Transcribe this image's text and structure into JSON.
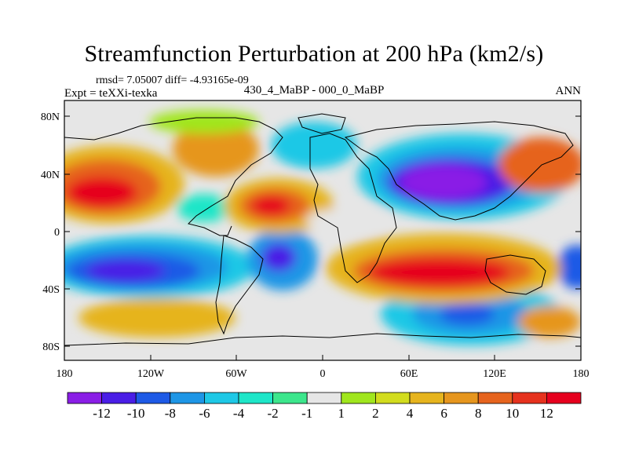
{
  "header": {
    "title": "Streamfunction Perturbation at 200 hPa (km2/s)",
    "rmsd_line": "rmsd= 7.05007 diff= -4.93165e-09",
    "expt_line": "Expt = teXXi-texka",
    "diff_name": "430_4_MaBP - 000_0_MaBP",
    "season": "ANN"
  },
  "axes": {
    "lat_labels": [
      "80N",
      "40N",
      "0",
      "40S",
      "80S"
    ],
    "lon_labels": [
      "180",
      "120W",
      "60W",
      "0",
      "60E",
      "120E",
      "180"
    ]
  },
  "colorbar": {
    "labels": [
      "-12",
      "-10",
      "-8",
      "-6",
      "-4",
      "-2",
      "-1",
      "1",
      "2",
      "4",
      "6",
      "8",
      "10",
      "12"
    ],
    "colors": [
      "#8a1ee6",
      "#4a1ee6",
      "#1e5ae6",
      "#1e96e6",
      "#1ec8e6",
      "#1ee6c8",
      "#3ce68c",
      "#e6e6e6",
      "#a0e61e",
      "#d2dc1e",
      "#e6b41e",
      "#e6961e",
      "#e6641e",
      "#e6321e",
      "#e6001e"
    ]
  },
  "field_colors": {
    "background": "#e6e6e6",
    "coast": "#000000"
  }
}
